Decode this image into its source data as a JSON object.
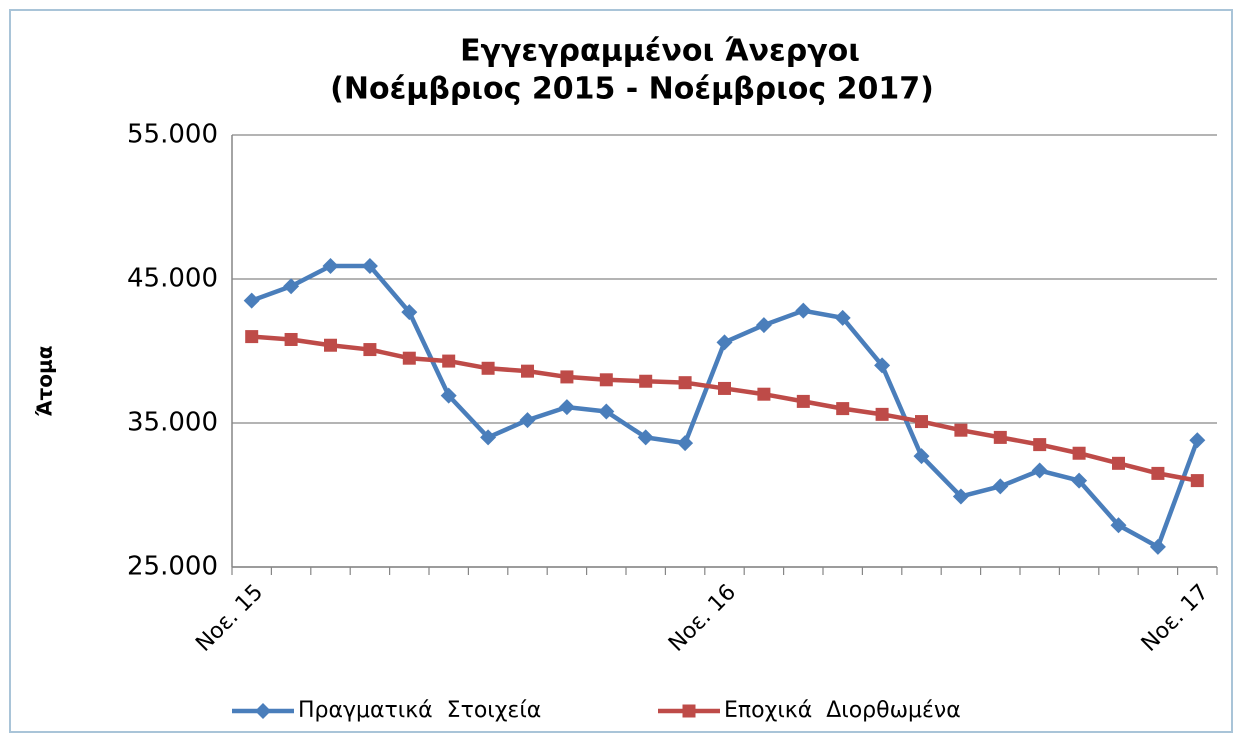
{
  "chart_data": {
    "type": "line",
    "title": "Εγγεγραμμένοι Άνεργοι",
    "subtitle": "(Νοέμβριος 2015 - Νοέμβριος 2017)",
    "y_label": "Άτομα",
    "categories": [
      "Νοε. 15",
      null,
      null,
      null,
      null,
      null,
      null,
      null,
      null,
      null,
      null,
      null,
      "Νοε. 16",
      null,
      null,
      null,
      null,
      null,
      null,
      null,
      null,
      null,
      null,
      null,
      "Νοε. 17"
    ],
    "series": [
      {
        "name": "Πραγματικά  Στοιχεία",
        "color": "#4a7ebb",
        "marker": "diamond",
        "values": [
          43500,
          44500,
          45900,
          45900,
          42700,
          36900,
          34000,
          35200,
          36100,
          35800,
          34000,
          33600,
          40600,
          41800,
          42800,
          42300,
          39000,
          32700,
          29900,
          30600,
          31700,
          31000,
          27900,
          26400,
          33800
        ]
      },
      {
        "name": "Εποχικά  Διορθωμένα",
        "color": "#be4b48",
        "marker": "square",
        "values": [
          41000,
          40800,
          40400,
          40100,
          39500,
          39300,
          38800,
          38600,
          38200,
          38000,
          37900,
          37800,
          37400,
          37000,
          36500,
          36000,
          35600,
          35100,
          34500,
          34000,
          33500,
          32900,
          32200,
          31500,
          31000
        ]
      }
    ],
    "ylim": [
      25000,
      55000
    ],
    "yticks": [
      {
        "value": 25000,
        "label": "25.000"
      },
      {
        "value": 35000,
        "label": "35.000"
      },
      {
        "value": 45000,
        "label": "45.000"
      },
      {
        "value": 55000,
        "label": "55.000"
      }
    ],
    "grid": true
  }
}
